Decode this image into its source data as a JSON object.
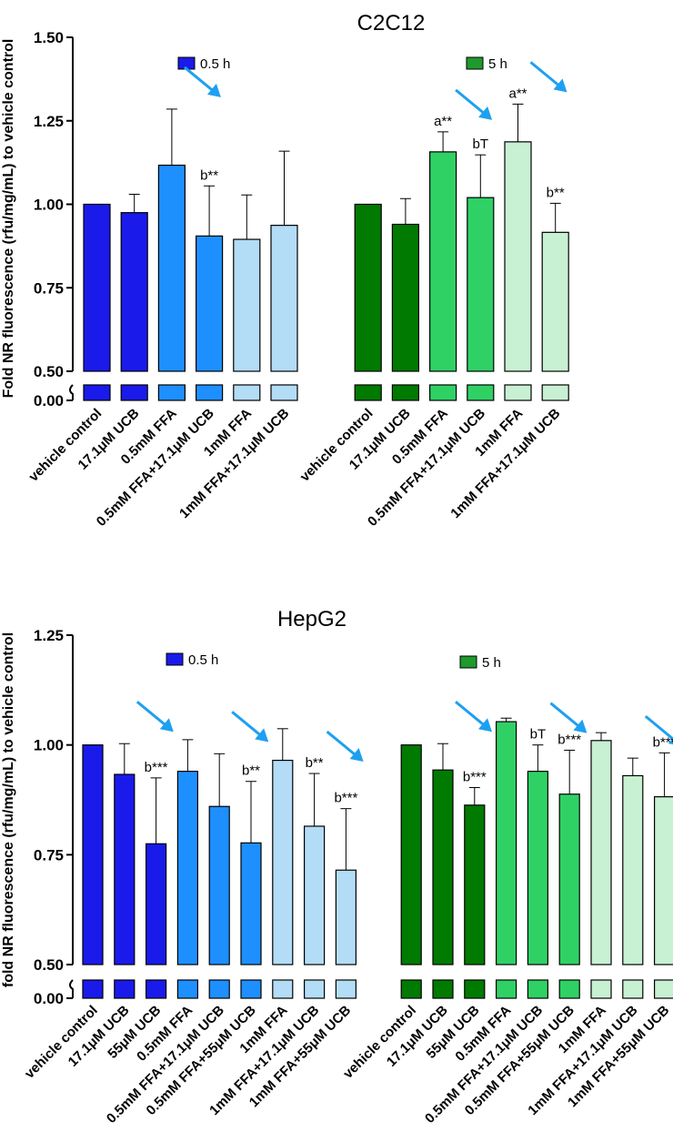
{
  "chart_data": [
    {
      "type": "bar",
      "title": "C2C12",
      "ylabel": "Fold NR fluorescence (rfu/mg/mL) to vehicle control",
      "xlabel": "",
      "ylim": [
        0,
        1.5
      ],
      "axis_break": [
        0.06,
        0.5
      ],
      "yticks": [
        "0.00",
        "0.50",
        "0.75",
        "1.00",
        "1.25",
        "1.50"
      ],
      "groups": [
        {
          "name": "0.5 h",
          "legend_color": "#1a1aeb",
          "bars": [
            {
              "label": "vehicle control",
              "value": 1.0,
              "error": 0.0,
              "color": "#1a1aeb",
              "annotation": "",
              "arrow": false
            },
            {
              "label": "17.1μM UCB",
              "value": 0.975,
              "error": 0.055,
              "color": "#1a1aeb",
              "annotation": "",
              "arrow": false
            },
            {
              "label": "0.5mM FFA",
              "value": 1.117,
              "error": 0.168,
              "color": "#1e8fff",
              "annotation": "",
              "arrow": true
            },
            {
              "label": "0.5mM FFA+17.1μM UCB",
              "value": 0.905,
              "error": 0.15,
              "color": "#1e8fff",
              "annotation": "b**",
              "arrow": false
            },
            {
              "label": "1mM FFA",
              "value": 0.895,
              "error": 0.133,
              "color": "#b3dcf7",
              "annotation": "",
              "arrow": false
            },
            {
              "label": "1mM FFA+17.1μM UCB",
              "value": 0.937,
              "error": 0.222,
              "color": "#b3dcf7",
              "annotation": "",
              "arrow": false
            }
          ]
        },
        {
          "name": "5 h",
          "legend_color": "#1e9a2e",
          "bars": [
            {
              "label": "vehicle control",
              "value": 1.0,
              "error": 0.0,
              "color": "#007a00",
              "annotation": "",
              "arrow": false
            },
            {
              "label": "17.1μM UCB",
              "value": 0.94,
              "error": 0.077,
              "color": "#007a00",
              "annotation": "",
              "arrow": false
            },
            {
              "label": "0.5mM FFA",
              "value": 1.157,
              "error": 0.06,
              "color": "#2fd165",
              "annotation": "a**",
              "arrow": true
            },
            {
              "label": "0.5mM FFA+17.1μM UCB",
              "value": 1.02,
              "error": 0.128,
              "color": "#2fd165",
              "annotation": "bT",
              "arrow": false
            },
            {
              "label": "1mM FFA",
              "value": 1.187,
              "error": 0.113,
              "color": "#c8f0d2",
              "annotation": "a**",
              "arrow": true
            },
            {
              "label": "1mM FFA+17.1μM UCB",
              "value": 0.916,
              "error": 0.087,
              "color": "#c8f0d2",
              "annotation": "b**",
              "arrow": false
            }
          ]
        }
      ]
    },
    {
      "type": "bar",
      "title": "HepG2",
      "ylabel": "fold NR fluorescence (rfu/mg/mL) to vehicle control",
      "xlabel": "",
      "ylim": [
        0,
        1.25
      ],
      "axis_break": [
        0.06,
        0.5
      ],
      "yticks": [
        "0.00",
        "0.50",
        "0.75",
        "1.00",
        "1.25"
      ],
      "groups": [
        {
          "name": "0.5 h",
          "legend_color": "#1a1aeb",
          "bars": [
            {
              "label": "vehicle control",
              "value": 1.0,
              "error": 0.0,
              "color": "#1a1aeb",
              "annotation": "",
              "arrow": false
            },
            {
              "label": "17.1μM UCB",
              "value": 0.933,
              "error": 0.07,
              "color": "#1a1aeb",
              "annotation": "",
              "arrow": true
            },
            {
              "label": "55μM UCB",
              "value": 0.775,
              "error": 0.15,
              "color": "#1a1aeb",
              "annotation": "b***",
              "arrow": false
            },
            {
              "label": "0.5mM FFA",
              "value": 0.94,
              "error": 0.072,
              "color": "#1e8fff",
              "annotation": "",
              "arrow": false
            },
            {
              "label": "0.5mM FFA+17.1μM UCB",
              "value": 0.86,
              "error": 0.12,
              "color": "#1e8fff",
              "annotation": "",
              "arrow": true
            },
            {
              "label": "0.5mM FFA+55μM UCB",
              "value": 0.777,
              "error": 0.14,
              "color": "#1e8fff",
              "annotation": "b**",
              "arrow": false
            },
            {
              "label": "1mM FFA",
              "value": 0.965,
              "error": 0.072,
              "color": "#b3dcf7",
              "annotation": "",
              "arrow": false
            },
            {
              "label": "1mM FFA+17.1μM UCB",
              "value": 0.815,
              "error": 0.12,
              "color": "#b3dcf7",
              "annotation": "b**",
              "arrow": true
            },
            {
              "label": "1mM FFA+55μM UCB",
              "value": 0.715,
              "error": 0.14,
              "color": "#b3dcf7",
              "annotation": "b***",
              "arrow": false
            }
          ]
        },
        {
          "name": "5 h",
          "legend_color": "#1e9a2e",
          "bars": [
            {
              "label": "vehicle control",
              "value": 1.0,
              "error": 0.0,
              "color": "#007a00",
              "annotation": "",
              "arrow": false
            },
            {
              "label": "17.1μM UCB",
              "value": 0.943,
              "error": 0.06,
              "color": "#007a00",
              "annotation": "",
              "arrow": true
            },
            {
              "label": "55μM UCB",
              "value": 0.863,
              "error": 0.04,
              "color": "#007a00",
              "annotation": "b***",
              "arrow": false
            },
            {
              "label": "0.5mM FFA",
              "value": 1.053,
              "error": 0.008,
              "color": "#2fd165",
              "annotation": "",
              "arrow": false
            },
            {
              "label": "0.5mM FFA+17.1μM UCB",
              "value": 0.94,
              "error": 0.06,
              "color": "#2fd165",
              "annotation": "bT",
              "arrow": true
            },
            {
              "label": "0.5mM FFA+55μM UCB",
              "value": 0.888,
              "error": 0.1,
              "color": "#2fd165",
              "annotation": "b***",
              "arrow": false
            },
            {
              "label": "1mM FFA",
              "value": 1.01,
              "error": 0.018,
              "color": "#c8f0d2",
              "annotation": "",
              "arrow": false
            },
            {
              "label": "1mM FFA+17.1μM UCB",
              "value": 0.93,
              "error": 0.04,
              "color": "#c8f0d2",
              "annotation": "",
              "arrow": true
            },
            {
              "label": "1mM FFA+55μM UCB",
              "value": 0.882,
              "error": 0.1,
              "color": "#c8f0d2",
              "annotation": "b***",
              "arrow": false
            }
          ]
        }
      ]
    }
  ]
}
